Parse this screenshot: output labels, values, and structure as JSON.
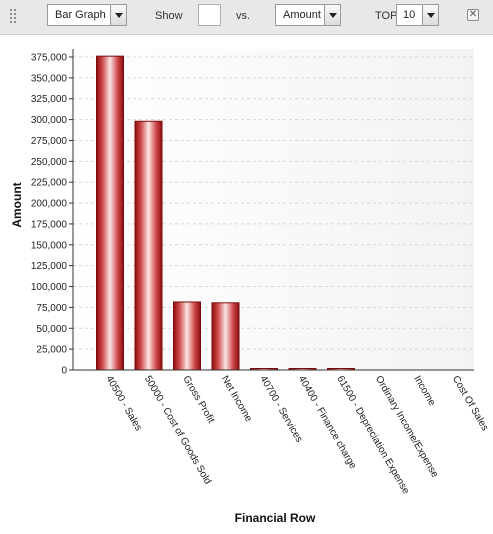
{
  "toolbar": {
    "chart_type": "Bar Graph",
    "show_label": "Show",
    "show_value": "",
    "vs_label": "vs.",
    "measure": "Amount",
    "top_label": "TOP",
    "top_value": "10",
    "close_glyph": "✕"
  },
  "chart_data": {
    "type": "bar",
    "categories": [
      "40500 - Sales",
      "50000 - Cost of Goods Sold",
      "Gross Profit",
      "Net Income",
      "40700 - Services",
      "40400 - Finance charge",
      "61500 - Depreciation Expense",
      "Ordinary Income/Expense",
      "Income",
      "Cost Of Sales"
    ],
    "values": [
      376000,
      298000,
      81500,
      80500,
      1500,
      1500,
      300,
      0,
      0,
      0
    ],
    "xlabel": "Financial Row",
    "ylabel": "Amount",
    "ylim": [
      0,
      375000
    ],
    "yticks": [
      0,
      25000,
      50000,
      75000,
      100000,
      125000,
      150000,
      175000,
      200000,
      225000,
      250000,
      275000,
      300000,
      325000,
      350000,
      375000
    ],
    "ytick_labels": [
      "0",
      "25,000",
      "50,000",
      "75,000",
      "100,000",
      "125,000",
      "150,000",
      "175,000",
      "200,000",
      "225,000",
      "250,000",
      "275,000",
      "300,000",
      "325,000",
      "350,000",
      "375,000"
    ],
    "grid": true,
    "bar_color": "#b01818"
  }
}
